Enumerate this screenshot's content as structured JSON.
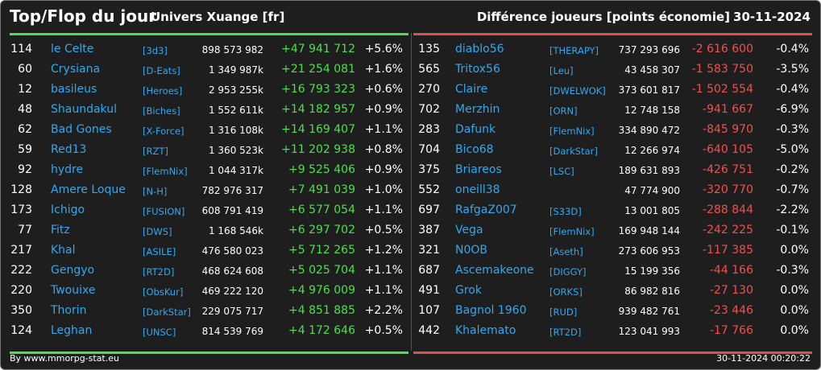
{
  "header": {
    "title": "Top/Flop du jour",
    "subtitle": "Univers Xuange [fr]",
    "metric": "Différence joueurs [points économie]",
    "date": "30-11-2024"
  },
  "top": [
    {
      "rank": "114",
      "name": "le Celte",
      "alliance": "[3d3]",
      "points": "898 573 982",
      "diff": "+47 941 712",
      "pct": "+5.6%"
    },
    {
      "rank": "60",
      "name": "Crysiana",
      "alliance": "[D-Eats]",
      "points": "1 349 987k",
      "diff": "+21 254 081",
      "pct": "+1.6%"
    },
    {
      "rank": "12",
      "name": "basileus",
      "alliance": "[Heroes]",
      "points": "2 953 255k",
      "diff": "+16 793 323",
      "pct": "+0.6%"
    },
    {
      "rank": "48",
      "name": "Shaundakul",
      "alliance": "[Biches]",
      "points": "1 552 611k",
      "diff": "+14 182 957",
      "pct": "+0.9%"
    },
    {
      "rank": "62",
      "name": "Bad Gones",
      "alliance": "[X-Force]",
      "points": "1 316 108k",
      "diff": "+14 169 407",
      "pct": "+1.1%"
    },
    {
      "rank": "59",
      "name": "Red13",
      "alliance": "[RZT]",
      "points": "1 360 523k",
      "diff": "+11 202 938",
      "pct": "+0.8%"
    },
    {
      "rank": "92",
      "name": "hydre",
      "alliance": "[FlemNix]",
      "points": "1 044 317k",
      "diff": "+9 525 406",
      "pct": "+0.9%"
    },
    {
      "rank": "128",
      "name": "Amere Loque",
      "alliance": "[N-H]",
      "points": "782 976 317",
      "diff": "+7 491 039",
      "pct": "+1.0%"
    },
    {
      "rank": "173",
      "name": "Ichigo",
      "alliance": "[FUSION]",
      "points": "608 791 419",
      "diff": "+6 577 054",
      "pct": "+1.1%"
    },
    {
      "rank": "77",
      "name": "Fitz",
      "alliance": "[DWS]",
      "points": "1 168 546k",
      "diff": "+6 297 702",
      "pct": "+0.5%"
    },
    {
      "rank": "217",
      "name": "Khal",
      "alliance": "[ASILE]",
      "points": "476 580 023",
      "diff": "+5 712 265",
      "pct": "+1.2%"
    },
    {
      "rank": "222",
      "name": "Gengyo",
      "alliance": "[RT2D]",
      "points": "468 624 608",
      "diff": "+5 025 704",
      "pct": "+1.1%"
    },
    {
      "rank": "220",
      "name": "Twouixe",
      "alliance": "[ObsKur]",
      "points": "469 222 120",
      "diff": "+4 976 009",
      "pct": "+1.1%"
    },
    {
      "rank": "350",
      "name": "Thorin",
      "alliance": "[DarkStar]",
      "points": "229 075 717",
      "diff": "+4 851 885",
      "pct": "+2.2%"
    },
    {
      "rank": "124",
      "name": "Leghan",
      "alliance": "[UNSC]",
      "points": "814 539 769",
      "diff": "+4 172 646",
      "pct": "+0.5%"
    }
  ],
  "flop": [
    {
      "rank": "135",
      "name": "diablo56",
      "alliance": "[THERAPY]",
      "points": "737 293 696",
      "diff": "-2 616 600",
      "pct": "-0.4%"
    },
    {
      "rank": "565",
      "name": "Tritox56",
      "alliance": "[Leu]",
      "points": "43 458 307",
      "diff": "-1 583 750",
      "pct": "-3.5%"
    },
    {
      "rank": "270",
      "name": "Claire",
      "alliance": "[DWELWOK]",
      "points": "373 601 817",
      "diff": "-1 502 554",
      "pct": "-0.4%"
    },
    {
      "rank": "702",
      "name": "Merzhin",
      "alliance": "[ORN]",
      "points": "12 748 158",
      "diff": "-941 667",
      "pct": "-6.9%"
    },
    {
      "rank": "283",
      "name": "Dafunk",
      "alliance": "[FlemNix]",
      "points": "334 890 472",
      "diff": "-845 970",
      "pct": "-0.3%"
    },
    {
      "rank": "704",
      "name": "Bico68",
      "alliance": "[DarkStar]",
      "points": "12 266 974",
      "diff": "-640 105",
      "pct": "-5.0%"
    },
    {
      "rank": "375",
      "name": "Briareos",
      "alliance": "[LSC]",
      "points": "189 631 893",
      "diff": "-426 751",
      "pct": "-0.2%"
    },
    {
      "rank": "552",
      "name": "oneill38",
      "alliance": "",
      "points": "47 774 900",
      "diff": "-320 770",
      "pct": "-0.7%"
    },
    {
      "rank": "697",
      "name": "RafgaZ007",
      "alliance": "[S33D]",
      "points": "13 001 805",
      "diff": "-288 844",
      "pct": "-2.2%"
    },
    {
      "rank": "387",
      "name": "Vega",
      "alliance": "[FlemNix]",
      "points": "169 948 144",
      "diff": "-242 225",
      "pct": "-0.1%"
    },
    {
      "rank": "321",
      "name": "N0OB",
      "alliance": "[Aseth]",
      "points": "273 606 953",
      "diff": "-117 385",
      "pct": "0.0%"
    },
    {
      "rank": "687",
      "name": "Ascemakeone",
      "alliance": "[DIGGY]",
      "points": "15 199 356",
      "diff": "-44 166",
      "pct": "-0.3%"
    },
    {
      "rank": "491",
      "name": "Grok",
      "alliance": "[ORKS]",
      "points": "86 982 816",
      "diff": "-27 130",
      "pct": "0.0%"
    },
    {
      "rank": "107",
      "name": "Bagnol 1960",
      "alliance": "[RUD]",
      "points": "939 482 761",
      "diff": "-23 446",
      "pct": "0.0%"
    },
    {
      "rank": "442",
      "name": "Khalemato",
      "alliance": "[RT2D]",
      "points": "123 041 993",
      "diff": "-17 766",
      "pct": "0.0%"
    }
  ],
  "colors": {
    "up": "#4ce04c",
    "down": "#f05050",
    "link": "#33a8ee",
    "background": "#1e1e1e"
  },
  "footer": {
    "source": "By www.mmorpg-stat.eu",
    "timestamp": "30-11-2024 00:20:22"
  }
}
